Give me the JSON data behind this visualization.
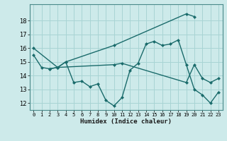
{
  "xlabel": "Humidex (Indice chaleur)",
  "bg_color": "#cdeaea",
  "grid_color": "#a8d4d4",
  "line_color": "#1a6b6b",
  "xlim": [
    -0.5,
    23.5
  ],
  "ylim": [
    11.5,
    19.2
  ],
  "yticks": [
    12,
    13,
    14,
    15,
    16,
    17,
    18
  ],
  "xticks": [
    0,
    1,
    2,
    3,
    4,
    5,
    6,
    7,
    8,
    9,
    10,
    11,
    12,
    13,
    14,
    15,
    16,
    17,
    18,
    19,
    20,
    21,
    22,
    23
  ],
  "line1_x": [
    0,
    3,
    4,
    10,
    19,
    20
  ],
  "line1_y": [
    16.0,
    14.6,
    15.0,
    16.2,
    18.5,
    18.3
  ],
  "line2_x": [
    0,
    1,
    2,
    3,
    4,
    5,
    6,
    7,
    8,
    9,
    10,
    11,
    12,
    13,
    14,
    15,
    16,
    17,
    18,
    19,
    20,
    21,
    22,
    23
  ],
  "line2_y": [
    15.5,
    14.6,
    14.5,
    14.6,
    15.0,
    13.5,
    13.6,
    13.2,
    13.4,
    12.2,
    11.8,
    12.4,
    14.4,
    14.9,
    16.3,
    16.5,
    16.2,
    16.3,
    16.6,
    14.8,
    13.0,
    12.6,
    12.0,
    12.8
  ],
  "line3_x": [
    2,
    3,
    10,
    11,
    19,
    20,
    21,
    22,
    23
  ],
  "line3_y": [
    14.5,
    14.6,
    14.8,
    14.9,
    13.5,
    14.8,
    13.8,
    13.5,
    13.8
  ]
}
